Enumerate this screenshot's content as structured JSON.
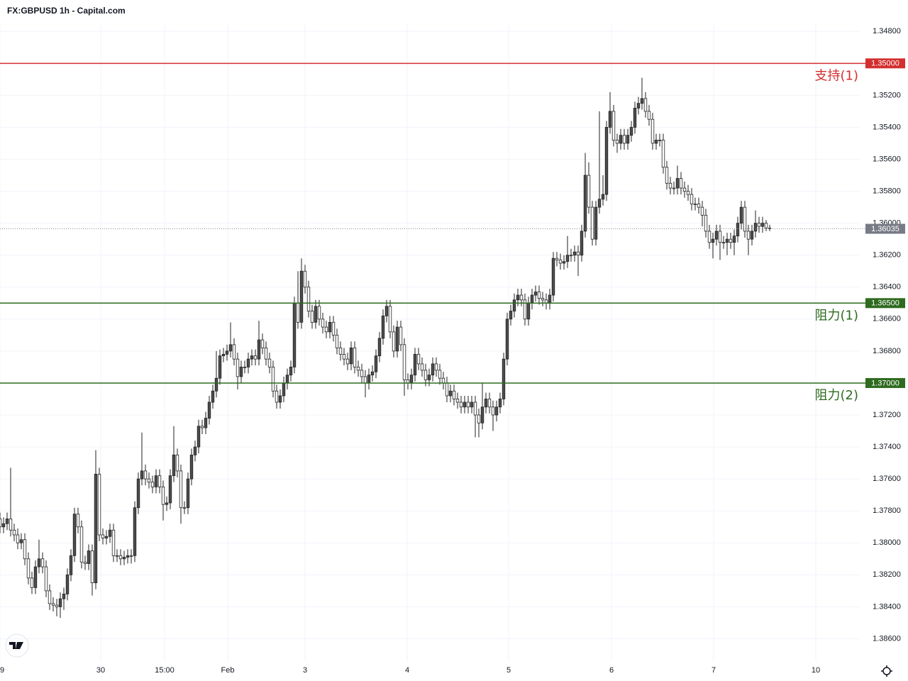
{
  "chart_data": {
    "type": "candlestick",
    "title": "FX:GBPUSD 1h - Capital.com",
    "up_color": "#ffffff",
    "down_color": "#4d4d4d",
    "wick_color": "#222222",
    "grid": true,
    "xlim": [
      0,
      242.4
    ],
    "xticks": [
      {
        "value": 0,
        "label": "9"
      },
      {
        "value": 28.4,
        "label": "30"
      },
      {
        "value": 46.4,
        "label": "15:00"
      },
      {
        "value": 64.2,
        "label": "Feb"
      },
      {
        "value": 86,
        "label": "3"
      },
      {
        "value": 114.8,
        "label": "4"
      },
      {
        "value": 143.4,
        "label": "5"
      },
      {
        "value": 172.4,
        "label": "6"
      },
      {
        "value": 201.2,
        "label": "7"
      },
      {
        "value": 230,
        "label": "10"
      }
    ],
    "ylim": [
      1.3475,
      1.3874
    ],
    "yticks": [
      {
        "value": 1.348,
        "label": "1.34800"
      },
      {
        "value": 1.35,
        "label": "1.35000"
      },
      {
        "value": 1.352,
        "label": "1.35200"
      },
      {
        "value": 1.354,
        "label": "1.35400"
      },
      {
        "value": 1.356,
        "label": "1.35600"
      },
      {
        "value": 1.358,
        "label": "1.35800"
      },
      {
        "value": 1.36,
        "label": "1.36000"
      },
      {
        "value": 1.362,
        "label": "1.36200"
      },
      {
        "value": 1.364,
        "label": "1.36400"
      },
      {
        "value": 1.366,
        "label": "1.36600"
      },
      {
        "value": 1.368,
        "label": "1.36800"
      },
      {
        "value": 1.37,
        "label": "1.37000"
      },
      {
        "value": 1.372,
        "label": "1.37200"
      },
      {
        "value": 1.374,
        "label": "1.37400"
      },
      {
        "value": 1.376,
        "label": "1.37600"
      },
      {
        "value": 1.378,
        "label": "1.37800"
      },
      {
        "value": 1.38,
        "label": "1.38000"
      },
      {
        "value": 1.382,
        "label": "1.38200"
      },
      {
        "value": 1.384,
        "label": "1.38400"
      },
      {
        "value": 1.386,
        "label": "1.38600"
      }
    ],
    "levels": [
      {
        "value": 1.37,
        "price_label": "1.37000",
        "name": "阻力(2)",
        "color": "#2e6b1f"
      },
      {
        "value": 1.365,
        "price_label": "1.36500",
        "name": "阻力(1)",
        "color": "#2e6b1f"
      },
      {
        "value": 1.35,
        "price_label": "1.35000",
        "name": "支持(1)",
        "color": "#d32f2f"
      }
    ],
    "last_price": 1.36035,
    "open": [
      1.3785,
      1.379,
      1.3788,
      1.3785,
      1.3792,
      1.3795,
      1.38,
      1.3798,
      1.381,
      1.3822,
      1.3828,
      1.3815,
      1.381,
      1.3815,
      1.383,
      1.3838,
      1.3839,
      1.384,
      1.3835,
      1.3832,
      1.382,
      1.3808,
      1.3782,
      1.379,
      1.3812,
      1.3813,
      1.3805,
      1.3825,
      1.3757,
      1.3795,
      1.3797,
      1.3796,
      1.3792,
      1.3808,
      1.3808,
      1.381,
      1.3809,
      1.3808,
      1.3808,
      1.3778,
      1.376,
      1.3755,
      1.376,
      1.3762,
      1.3765,
      1.3758,
      1.3765,
      1.3776,
      1.3775,
      1.3758,
      1.3745,
      1.3755,
      1.3778,
      1.3778,
      1.376,
      1.3745,
      1.374,
      1.3727,
      1.3728,
      1.3722,
      1.3712,
      1.3705,
      1.3697,
      1.3683,
      1.3682,
      1.368,
      1.3676,
      1.3685,
      1.3696,
      1.369,
      1.369,
      1.3685,
      1.3683,
      1.3685,
      1.3673,
      1.3678,
      1.3685,
      1.369,
      1.3705,
      1.3712,
      1.3708,
      1.37,
      1.3695,
      1.369,
      1.365,
      1.3662,
      1.363,
      1.364,
      1.3655,
      1.3662,
      1.3652,
      1.366,
      1.3665,
      1.3668,
      1.3662,
      1.367,
      1.3678,
      1.3682,
      1.3685,
      1.3688,
      1.3678,
      1.369,
      1.3692,
      1.3696,
      1.37,
      1.3695,
      1.3693,
      1.3683,
      1.3672,
      1.3658,
      1.3652,
      1.3668,
      1.368,
      1.3665,
      1.3676,
      1.3698,
      1.37,
      1.3695,
      1.3682,
      1.3688,
      1.3692,
      1.3698,
      1.3695,
      1.3688,
      1.3692,
      1.3697,
      1.37,
      1.3708,
      1.3705,
      1.371,
      1.3712,
      1.3715,
      1.3712,
      1.3715,
      1.3712,
      1.372,
      1.3725,
      1.3715,
      1.371,
      1.3715,
      1.372,
      1.3715,
      1.371,
      1.3685,
      1.366,
      1.3655,
      1.3648,
      1.3645,
      1.3648,
      1.366,
      1.365,
      1.3645,
      1.3643,
      1.3647,
      1.3648,
      1.365,
      1.3645,
      1.3622,
      1.3623,
      1.3625,
      1.3624,
      1.362,
      1.362,
      1.3618,
      1.362,
      1.3605,
      1.357,
      1.359,
      1.361,
      1.359,
      1.3585,
      1.3582,
      1.354,
      1.353,
      1.3548,
      1.355,
      1.3545,
      1.355,
      1.3545,
      1.354,
      1.3528,
      1.3525,
      1.3522,
      1.353,
      1.3535,
      1.355,
      1.3548,
      1.3548,
      1.3565,
      1.3575,
      1.3578,
      1.3578,
      1.3572,
      1.3578,
      1.358,
      1.3582,
      1.3588,
      1.3588,
      1.359,
      1.3595,
      1.3605,
      1.3612,
      1.361,
      1.3605,
      1.3612,
      1.3612,
      1.361,
      1.3612,
      1.3608,
      1.36,
      1.359,
      1.3605,
      1.361,
      1.3605,
      1.36,
      1.3602,
      1.36,
      1.3603
    ],
    "high": [
      1.3794,
      1.3794,
      1.3792,
      1.3796,
      1.3799,
      1.3804,
      1.3804,
      1.3814,
      1.3826,
      1.3832,
      1.3832,
      1.3819,
      1.3819,
      1.3834,
      1.3842,
      1.3843,
      1.3846,
      1.3847,
      1.3842,
      1.3836,
      1.3824,
      1.3812,
      1.3794,
      1.3816,
      1.3817,
      1.3817,
      1.3833,
      1.3829,
      1.3799,
      1.3801,
      1.3801,
      1.38,
      1.3812,
      1.3812,
      1.3814,
      1.3814,
      1.3813,
      1.3813,
      1.3812,
      1.3782,
      1.3764,
      1.3764,
      1.3766,
      1.3769,
      1.3769,
      1.3769,
      1.3786,
      1.378,
      1.3779,
      1.3762,
      1.3759,
      1.3788,
      1.3782,
      1.3782,
      1.3764,
      1.3749,
      1.3744,
      1.3732,
      1.3732,
      1.3726,
      1.3716,
      1.3709,
      1.3701,
      1.3687,
      1.3686,
      1.3684,
      1.3689,
      1.3704,
      1.37,
      1.3694,
      1.3694,
      1.3689,
      1.3689,
      1.3689,
      1.3682,
      1.3689,
      1.3694,
      1.3709,
      1.3716,
      1.3716,
      1.3712,
      1.3704,
      1.3699,
      1.3694,
      1.3666,
      1.3666,
      1.3644,
      1.3659,
      1.3666,
      1.3666,
      1.3664,
      1.3669,
      1.3672,
      1.3672,
      1.3674,
      1.3682,
      1.3686,
      1.3689,
      1.3692,
      1.3692,
      1.3694,
      1.3696,
      1.37,
      1.3709,
      1.3704,
      1.3699,
      1.3697,
      1.3687,
      1.3676,
      1.3662,
      1.3672,
      1.3684,
      1.3684,
      1.368,
      1.3708,
      1.3704,
      1.3704,
      1.3699,
      1.3692,
      1.3696,
      1.3702,
      1.3702,
      1.3699,
      1.3696,
      1.3701,
      1.3704,
      1.3712,
      1.3712,
      1.3714,
      1.3716,
      1.3719,
      1.3719,
      1.3719,
      1.3719,
      1.3734,
      1.3734,
      1.3729,
      1.3719,
      1.3719,
      1.373,
      1.3724,
      1.3719,
      1.3714,
      1.3689,
      1.3664,
      1.3659,
      1.3652,
      1.3652,
      1.3664,
      1.3664,
      1.3654,
      1.3649,
      1.3651,
      1.3652,
      1.3654,
      1.3654,
      1.3649,
      1.3627,
      1.3629,
      1.3629,
      1.3628,
      1.3624,
      1.3624,
      1.3633,
      1.3624,
      1.3609,
      1.3594,
      1.3614,
      1.3614,
      1.3594,
      1.3589,
      1.3586,
      1.3544,
      1.3552,
      1.3556,
      1.3554,
      1.3554,
      1.3554,
      1.3549,
      1.3544,
      1.3532,
      1.3529,
      1.3534,
      1.3539,
      1.3554,
      1.3554,
      1.3552,
      1.3569,
      1.3579,
      1.3582,
      1.3582,
      1.3582,
      1.3582,
      1.3584,
      1.3586,
      1.3592,
      1.3592,
      1.3594,
      1.3602,
      1.3609,
      1.3616,
      1.3622,
      1.3614,
      1.3623,
      1.3616,
      1.362,
      1.3616,
      1.362,
      1.3612,
      1.3604,
      1.3609,
      1.362,
      1.3614,
      1.3609,
      1.3606,
      1.3606,
      1.3605,
      1.3605
    ],
    "low": [
      1.3781,
      1.3784,
      1.3781,
      1.3753,
      1.3788,
      1.3791,
      1.3794,
      1.3794,
      1.3806,
      1.3818,
      1.3811,
      1.3798,
      1.3806,
      1.3811,
      1.3826,
      1.3834,
      1.3835,
      1.3831,
      1.3828,
      1.3816,
      1.3804,
      1.3778,
      1.3778,
      1.3786,
      1.3808,
      1.3801,
      1.3801,
      1.3742,
      1.3753,
      1.3791,
      1.3792,
      1.3788,
      1.3788,
      1.3804,
      1.3804,
      1.3805,
      1.3804,
      1.3804,
      1.3774,
      1.3756,
      1.3731,
      1.3751,
      1.3756,
      1.3758,
      1.3754,
      1.3754,
      1.3761,
      1.3771,
      1.3754,
      1.3727,
      1.3741,
      1.3751,
      1.3774,
      1.3756,
      1.3741,
      1.3736,
      1.3723,
      1.3723,
      1.3718,
      1.3708,
      1.3701,
      1.368,
      1.3679,
      1.3678,
      1.3676,
      1.3662,
      1.3672,
      1.3681,
      1.3686,
      1.3686,
      1.3681,
      1.3679,
      1.3679,
      1.3661,
      1.3669,
      1.3674,
      1.3681,
      1.3686,
      1.3701,
      1.3704,
      1.3696,
      1.3691,
      1.3686,
      1.3646,
      1.363,
      1.3622,
      1.3626,
      1.3636,
      1.3651,
      1.3648,
      1.3648,
      1.3656,
      1.3661,
      1.3658,
      1.3658,
      1.3666,
      1.3674,
      1.3678,
      1.3681,
      1.3674,
      1.3674,
      1.3686,
      1.3688,
      1.3692,
      1.3691,
      1.3689,
      1.3679,
      1.3668,
      1.3654,
      1.3648,
      1.3648,
      1.3664,
      1.3661,
      1.3661,
      1.3672,
      1.3694,
      1.3691,
      1.3678,
      1.3678,
      1.3684,
      1.3688,
      1.3691,
      1.3684,
      1.3684,
      1.3688,
      1.3693,
      1.3696,
      1.3701,
      1.3701,
      1.3706,
      1.3708,
      1.3708,
      1.3708,
      1.3708,
      1.3708,
      1.3716,
      1.37,
      1.3706,
      1.3706,
      1.3711,
      1.3711,
      1.3706,
      1.3681,
      1.3656,
      1.3651,
      1.3644,
      1.3641,
      1.3641,
      1.3644,
      1.3646,
      1.3641,
      1.3639,
      1.3639,
      1.3643,
      1.3644,
      1.3641,
      1.3618,
      1.3618,
      1.3619,
      1.362,
      1.3608,
      1.3616,
      1.3614,
      1.3614,
      1.3601,
      1.3556,
      1.3562,
      1.3586,
      1.3586,
      1.353,
      1.357,
      1.3536,
      1.3518,
      1.3526,
      1.3544,
      1.3541,
      1.3541,
      1.3541,
      1.3536,
      1.3524,
      1.3521,
      1.3509,
      1.3518,
      1.3526,
      1.3531,
      1.3544,
      1.3544,
      1.3544,
      1.3561,
      1.3571,
      1.3574,
      1.3564,
      1.3568,
      1.3574,
      1.3576,
      1.3578,
      1.3584,
      1.3584,
      1.3586,
      1.3591,
      1.3601,
      1.3606,
      1.3601,
      1.3601,
      1.3608,
      1.3606,
      1.3606,
      1.3604,
      1.3596,
      1.3586,
      1.3586,
      1.3601,
      1.3601,
      1.3592,
      1.3596,
      1.3596,
      1.3598,
      1.3601
    ],
    "close": [
      1.379,
      1.3788,
      1.3785,
      1.3792,
      1.3795,
      1.38,
      1.3798,
      1.381,
      1.3822,
      1.3828,
      1.3815,
      1.381,
      1.3815,
      1.383,
      1.3838,
      1.3839,
      1.384,
      1.3835,
      1.3832,
      1.382,
      1.3808,
      1.3782,
      1.379,
      1.3812,
      1.3813,
      1.3805,
      1.3825,
      1.3757,
      1.3795,
      1.3797,
      1.3796,
      1.3792,
      1.3808,
      1.3808,
      1.381,
      1.3809,
      1.3808,
      1.3808,
      1.3778,
      1.376,
      1.3755,
      1.376,
      1.3762,
      1.3765,
      1.3758,
      1.3765,
      1.3776,
      1.3775,
      1.3758,
      1.3745,
      1.3755,
      1.3778,
      1.3778,
      1.376,
      1.3745,
      1.374,
      1.3727,
      1.3728,
      1.3722,
      1.3712,
      1.3705,
      1.3697,
      1.3683,
      1.3682,
      1.368,
      1.3676,
      1.3685,
      1.3696,
      1.369,
      1.369,
      1.3685,
      1.3683,
      1.3685,
      1.3673,
      1.3678,
      1.3685,
      1.369,
      1.3705,
      1.3712,
      1.3708,
      1.37,
      1.3695,
      1.369,
      1.365,
      1.3662,
      1.363,
      1.364,
      1.3655,
      1.3662,
      1.3652,
      1.366,
      1.3665,
      1.3668,
      1.3662,
      1.367,
      1.3678,
      1.3682,
      1.3685,
      1.3688,
      1.3678,
      1.369,
      1.3692,
      1.3696,
      1.37,
      1.3695,
      1.3693,
      1.3683,
      1.3672,
      1.3658,
      1.3652,
      1.3668,
      1.368,
      1.3665,
      1.3676,
      1.3698,
      1.37,
      1.3695,
      1.3682,
      1.3688,
      1.3692,
      1.3698,
      1.3695,
      1.3688,
      1.3692,
      1.3697,
      1.37,
      1.3708,
      1.3705,
      1.371,
      1.3712,
      1.3715,
      1.3712,
      1.3715,
      1.3712,
      1.372,
      1.3725,
      1.3715,
      1.371,
      1.3715,
      1.372,
      1.3715,
      1.371,
      1.3685,
      1.366,
      1.3655,
      1.3648,
      1.3645,
      1.3648,
      1.366,
      1.365,
      1.3645,
      1.3643,
      1.3647,
      1.3648,
      1.365,
      1.3645,
      1.3622,
      1.3623,
      1.3625,
      1.3624,
      1.362,
      1.362,
      1.3618,
      1.362,
      1.3605,
      1.357,
      1.359,
      1.361,
      1.359,
      1.3585,
      1.3582,
      1.354,
      1.353,
      1.3548,
      1.355,
      1.3545,
      1.355,
      1.3545,
      1.354,
      1.3528,
      1.3525,
      1.3522,
      1.353,
      1.3535,
      1.355,
      1.3548,
      1.3548,
      1.3565,
      1.3575,
      1.3578,
      1.3578,
      1.3572,
      1.3578,
      1.358,
      1.3582,
      1.3588,
      1.3588,
      1.359,
      1.3595,
      1.3605,
      1.3612,
      1.361,
      1.3605,
      1.3612,
      1.3612,
      1.361,
      1.3612,
      1.3608,
      1.36,
      1.359,
      1.3605,
      1.361,
      1.3605,
      1.36,
      1.3602,
      1.36,
      1.3603,
      1.36035
    ]
  }
}
